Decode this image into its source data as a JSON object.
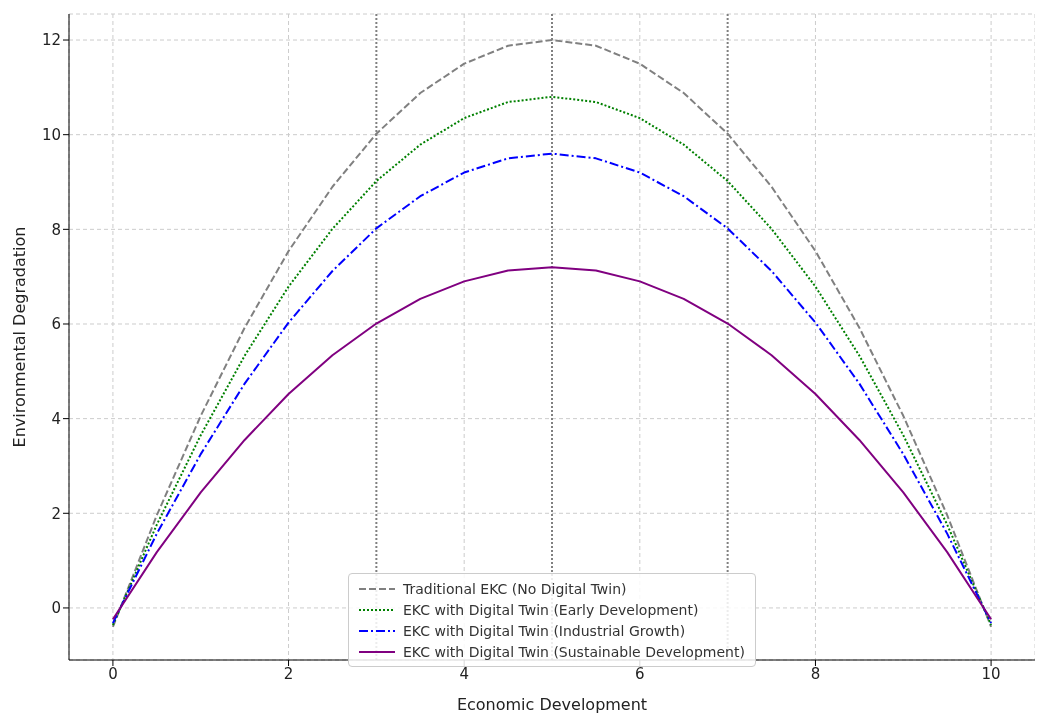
{
  "chart_data": {
    "type": "line",
    "xlabel": "Economic Development",
    "ylabel": "Environmental Degradation",
    "x": [
      0,
      0.5,
      1,
      1.5,
      2,
      2.5,
      3,
      3.5,
      4,
      4.5,
      5,
      5.5,
      6,
      6.5,
      7,
      7.5,
      8,
      8.5,
      9,
      9.5,
      10
    ],
    "series": [
      {
        "name": "Traditional EKC (No Digital Twin)",
        "color": "#808080",
        "line_style": "dashed",
        "values": [
          -0.4,
          1.96,
          4.06,
          5.92,
          7.54,
          8.9,
          10.02,
          10.88,
          11.5,
          11.88,
          12,
          11.88,
          11.5,
          10.88,
          10.02,
          8.9,
          7.54,
          5.92,
          4.06,
          1.96,
          -0.4
        ]
      },
      {
        "name": "EKC with Digital Twin (Early Development)",
        "color": "#008000",
        "line_style": "dotted",
        "values": [
          -0.36,
          1.76,
          3.65,
          5.33,
          6.79,
          8.01,
          9.02,
          9.79,
          10.35,
          10.69,
          10.8,
          10.69,
          10.35,
          9.79,
          9.02,
          8.01,
          6.79,
          5.33,
          3.65,
          1.76,
          -0.36
        ]
      },
      {
        "name": "EKC with Digital Twin (Industrial Growth)",
        "color": "#0000ff",
        "line_style": "dashdot",
        "values": [
          -0.32,
          1.57,
          3.25,
          4.74,
          6.03,
          7.12,
          8.02,
          8.7,
          9.2,
          9.5,
          9.6,
          9.5,
          9.2,
          8.7,
          8.02,
          7.12,
          6.03,
          4.74,
          3.25,
          1.57,
          -0.32
        ]
      },
      {
        "name": "EKC with Digital Twin (Sustainable Development)",
        "color": "#800080",
        "line_style": "solid",
        "values": [
          -0.24,
          1.18,
          2.44,
          3.55,
          4.52,
          5.34,
          6.01,
          6.53,
          6.9,
          7.13,
          7.2,
          7.13,
          6.9,
          6.53,
          6.01,
          5.34,
          4.52,
          3.55,
          2.44,
          1.18,
          -0.24
        ]
      }
    ],
    "xlim": [
      -0.5,
      10.5
    ],
    "xticks": [
      0,
      2,
      4,
      6,
      8,
      10
    ],
    "ylim": [
      -1.1,
      12.55
    ],
    "yticks": [
      0,
      2,
      4,
      6,
      8,
      10,
      12
    ],
    "ref_lines": [
      {
        "axis": "x",
        "value": 3,
        "color": "#808080",
        "line_style": "dotted"
      },
      {
        "axis": "x",
        "value": 5,
        "color": "#808080",
        "line_style": "dotted"
      },
      {
        "axis": "x",
        "value": 7,
        "color": "#808080",
        "line_style": "dotted"
      }
    ],
    "grid": true,
    "legend": "bottom",
    "marker": "none"
  }
}
